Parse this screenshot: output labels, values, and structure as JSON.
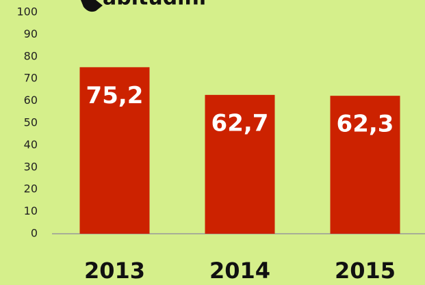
{
  "chart_data": {
    "type": "bar",
    "title": "abitudini",
    "categories": [
      "2013",
      "2014",
      "2015"
    ],
    "values": [
      75.2,
      62.7,
      62.3
    ],
    "value_labels": [
      "75,2",
      "62,7",
      "62,3"
    ],
    "color": "#cc2200",
    "ylim": [
      0,
      100
    ],
    "yticks": [
      0,
      10,
      20,
      30,
      40,
      50,
      60,
      70,
      80,
      90,
      100
    ],
    "grid": false
  }
}
